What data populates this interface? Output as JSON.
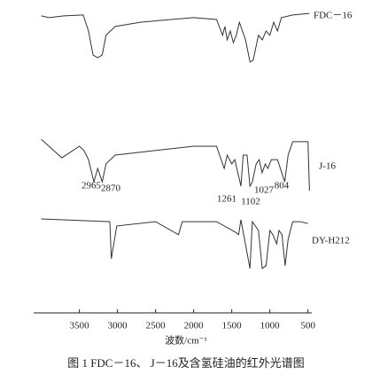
{
  "chart_data": {
    "type": "line",
    "x_label": "波数/cm⁻¹",
    "caption": "图 1   FDC－16、 J－16及含氢硅油的红外光谱图",
    "xlim": [
      4100,
      450
    ],
    "ylim": [
      0,
      100
    ],
    "xticks": [
      3500,
      3000,
      2500,
      2000,
      1500,
      1000,
      500
    ],
    "annotations": [
      "2965",
      "2870",
      "1261",
      "1102",
      "1027",
      "804"
    ],
    "series": [
      {
        "name": "FDC－16",
        "color": "#333333",
        "x": [
          4000,
          3900,
          3700,
          3450,
          3380,
          3320,
          3260,
          3200,
          3150,
          3030,
          2700,
          2300,
          2000,
          1700,
          1620,
          1590,
          1560,
          1520,
          1480,
          1440,
          1400,
          1320,
          1260,
          1220,
          1150,
          1100,
          1050,
          1000,
          950,
          900,
          850,
          700,
          480
        ],
        "values": [
          97.7,
          97.1,
          97.7,
          98.0,
          92.7,
          84.8,
          83.9,
          84.8,
          91.3,
          94.2,
          95.6,
          96.5,
          97.1,
          96.5,
          91.3,
          94.2,
          89.8,
          92.7,
          88.9,
          91.3,
          95.6,
          89.8,
          82.5,
          83.1,
          91.3,
          89.8,
          92.7,
          91.3,
          95.6,
          92.7,
          97.1,
          98.0,
          98.5
        ]
      },
      {
        "name": "J-16",
        "color": "#333333",
        "x": [
          4000,
          3730,
          3500,
          3440,
          3380,
          3310,
          3260,
          3200,
          3150,
          3030,
          2500,
          2000,
          1700,
          1600,
          1560,
          1500,
          1460,
          1380,
          1350,
          1300,
          1261,
          1230,
          1180,
          1140,
          1102,
          1060,
          1027,
          980,
          900,
          804,
          760,
          700,
          550,
          500,
          480
        ],
        "values": [
          57.1,
          51.0,
          54.8,
          53.4,
          50.4,
          43.1,
          47.5,
          43.1,
          49.0,
          51.9,
          53.4,
          54.8,
          54.8,
          47.5,
          51.9,
          49.0,
          50.4,
          41.7,
          51.9,
          51.9,
          41.7,
          43.1,
          49.0,
          50.4,
          46.1,
          49.0,
          47.5,
          50.4,
          50.4,
          43.1,
          51.9,
          56.3,
          56.3,
          56.3,
          40.2
        ]
      },
      {
        "name": "DY-H212",
        "color": "#333333",
        "x": [
          4000,
          3100,
          3080,
          3010,
          2500,
          2200,
          2150,
          1700,
          1450,
          1410,
          1380,
          1261,
          1230,
          1150,
          1100,
          1050,
          1000,
          960,
          910,
          880,
          840,
          800,
          760,
          700,
          600,
          500
        ],
        "values": [
          30.9,
          30.0,
          17.8,
          28.6,
          30.0,
          25.7,
          30.0,
          30.0,
          26.5,
          25.7,
          30.6,
          14.6,
          30.0,
          27.1,
          14.6,
          15.5,
          27.1,
          25.7,
          22.7,
          27.1,
          25.7,
          15.5,
          24.2,
          30.0,
          30.0,
          29.4
        ]
      }
    ]
  }
}
